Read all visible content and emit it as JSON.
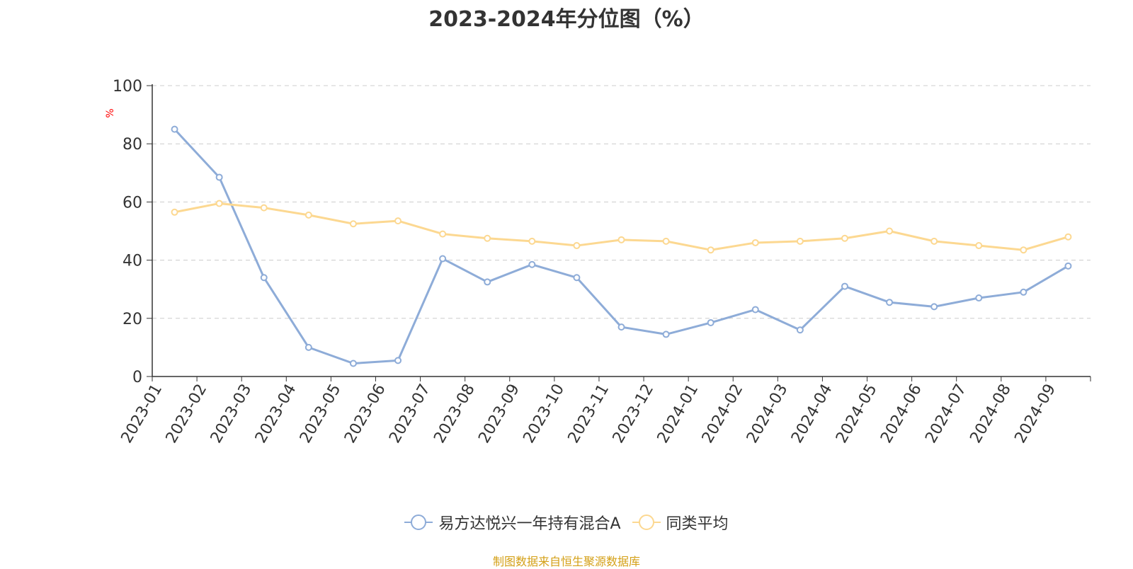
{
  "chart_data": {
    "type": "line",
    "title": "2023-2024年分位图（%）",
    "ylabel": "%",
    "xlabel": "",
    "ylim": [
      0,
      100
    ],
    "yticks": [
      0,
      20,
      40,
      60,
      80,
      100
    ],
    "grid": true,
    "legend_position": "bottom",
    "categories": [
      "2023-01",
      "2023-02",
      "2023-03",
      "2023-04",
      "2023-05",
      "2023-06",
      "2023-07",
      "2023-08",
      "2023-09",
      "2023-10",
      "2023-11",
      "2023-12",
      "2024-01",
      "2024-02",
      "2024-03",
      "2024-04",
      "2024-05",
      "2024-06",
      "2024-07",
      "2024-08",
      "2024-09"
    ],
    "series": [
      {
        "name": "易方达悦兴一年持有混合A",
        "color": "#8eacd8",
        "values": [
          85,
          68.5,
          34,
          10,
          4.5,
          5.5,
          40.5,
          32.5,
          38.5,
          34,
          17,
          14.5,
          18.5,
          23,
          16,
          31,
          25.5,
          24,
          27,
          29,
          38
        ]
      },
      {
        "name": "同类平均",
        "color": "#fcd891",
        "values": [
          56.5,
          59.5,
          58,
          55.5,
          52.5,
          53.5,
          49,
          47.5,
          46.5,
          45,
          47,
          46.5,
          43.5,
          46,
          46.5,
          47.5,
          50,
          46.5,
          45,
          43.5,
          48
        ]
      }
    ]
  },
  "footer": {
    "source": "制图数据来自恒生聚源数据库"
  }
}
